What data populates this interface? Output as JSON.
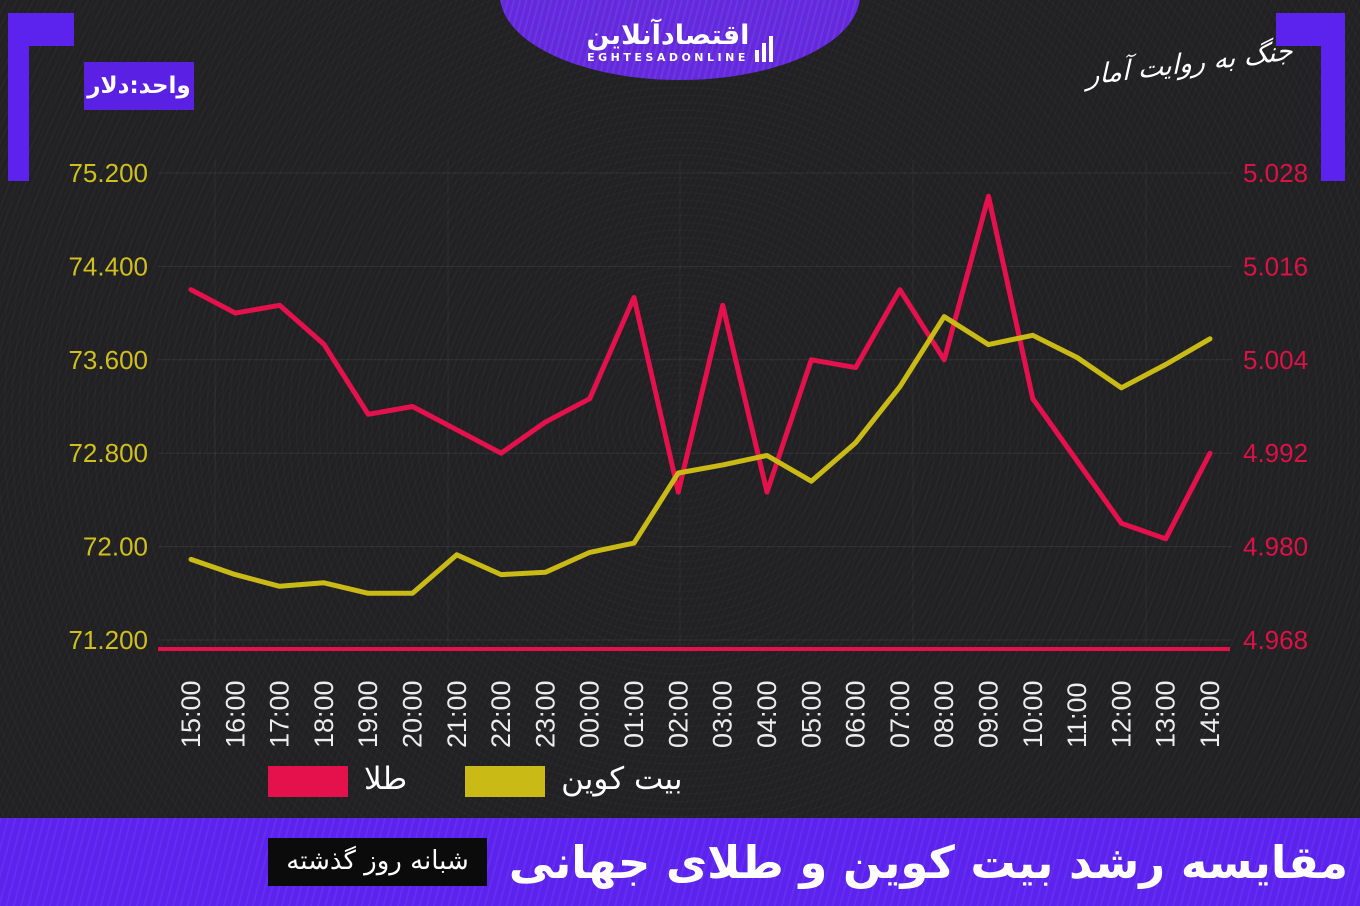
{
  "header": {
    "logo": {
      "fa": "اقتصادآنلاین",
      "en": "EGHTESADONLINE"
    },
    "unit_badge": "واحد:دلار",
    "slogan": "جنگ به روایت آمار"
  },
  "footer": {
    "title": "مقایسه رشد بیت کوین و طلای جهانی",
    "badge": "شبانه روز گذشته"
  },
  "legend": [
    {
      "label": "طلا",
      "color": "#e4114d"
    },
    {
      "label": "بیت کوین",
      "color": "#c9ba16"
    }
  ],
  "colors": {
    "background": "#212123",
    "purple": "#5c23ee",
    "purple_badge": "#5a20e4",
    "purple_ellipse": "#6429dd",
    "gold_line": "#e4114d",
    "bitcoin_line": "#c9ba16",
    "left_axis_text": "#cfc01e",
    "right_axis_text": "#dc1145",
    "x_axis_text": "#ececec"
  },
  "chart_data": {
    "type": "line",
    "title": "مقایسه رشد بیت کوین و طلای جهانی",
    "xlabel": "",
    "ylabel": "",
    "grid": true,
    "legend_position": "bottom",
    "categories": [
      "15:00",
      "16:00",
      "17:00",
      "18:00",
      "19:00",
      "20:00",
      "21:00",
      "22:00",
      "23:00",
      "00:00",
      "01:00",
      "02:00",
      "03:00",
      "04:00",
      "05:00",
      "06:00",
      "07:00",
      "08:00",
      "09:00",
      "10:00",
      "11:00",
      "12:00",
      "13:00",
      "14:00"
    ],
    "left_axis": {
      "ticks": [
        "75.200",
        "74.400",
        "73.600",
        "72.800",
        "72.00",
        "71.200"
      ],
      "range": [
        71.2,
        75.2
      ],
      "color": "#cfc01e"
    },
    "right_axis": {
      "ticks": [
        "5.028",
        "5.016",
        "5.004",
        "4.992",
        "4.980",
        "4.968"
      ],
      "range": [
        4.968,
        5.028
      ],
      "color": "#dc1145"
    },
    "series": [
      {
        "name": "طلا",
        "axis": "right",
        "color": "#e4114d",
        "values": [
          5.013,
          5.01,
          5.011,
          5.006,
          4.997,
          4.998,
          4.995,
          4.992,
          4.996,
          4.999,
          5.012,
          4.987,
          5.011,
          4.987,
          5.004,
          5.003,
          5.013,
          5.004,
          5.025,
          4.999,
          4.991,
          4.983,
          4.981,
          4.992
        ]
      },
      {
        "name": "بیت کوین",
        "axis": "left",
        "color": "#c9ba16",
        "values": [
          71.89,
          71.76,
          71.66,
          71.69,
          71.6,
          71.6,
          71.93,
          71.76,
          71.78,
          71.95,
          72.03,
          72.63,
          72.7,
          72.78,
          72.56,
          72.89,
          73.37,
          73.97,
          73.73,
          73.81,
          73.62,
          73.36,
          73.56,
          73.78
        ]
      }
    ]
  }
}
